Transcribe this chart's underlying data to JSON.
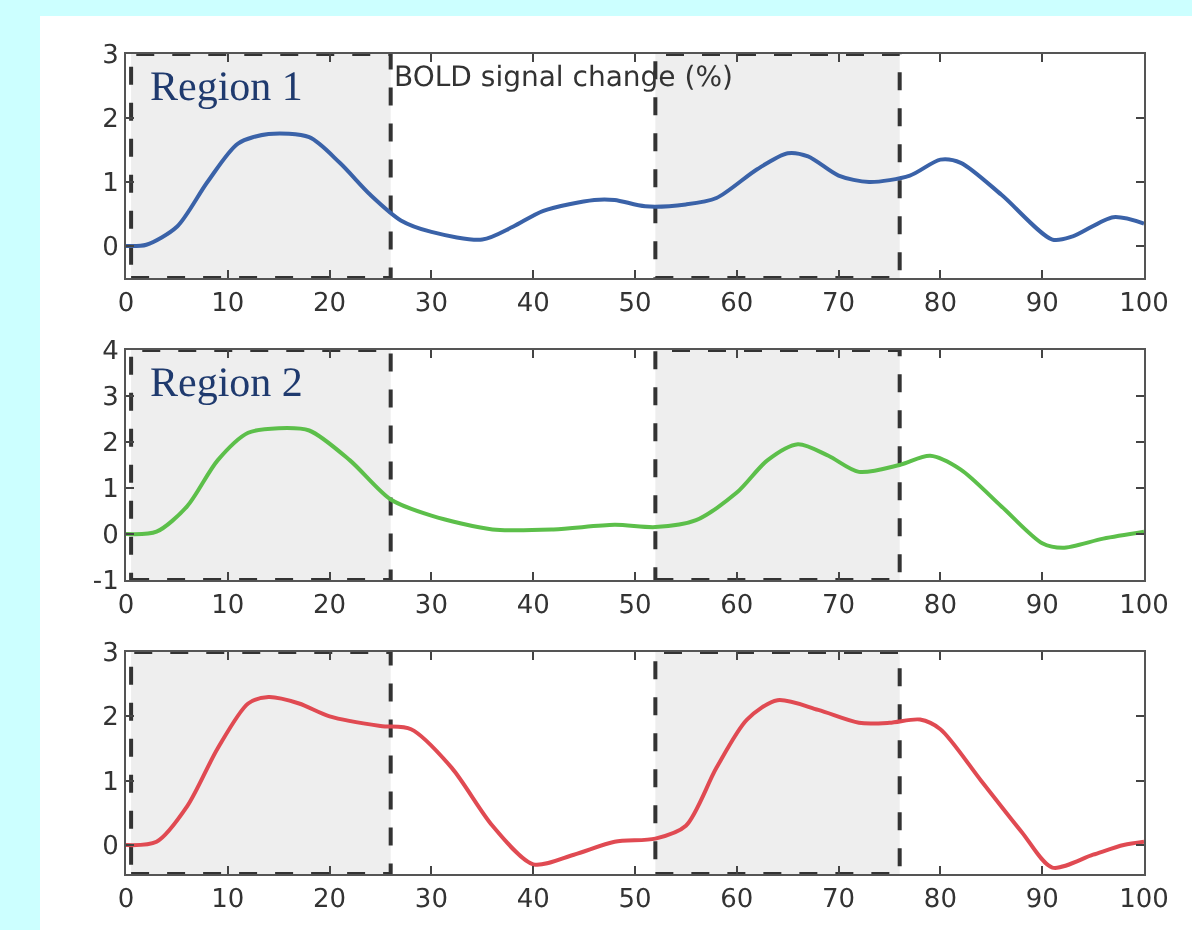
{
  "chart_data": [
    {
      "type": "line",
      "annotations": [
        "Region 1",
        "BOLD signal change (%)"
      ],
      "x": [
        0,
        2,
        5,
        8,
        11,
        14,
        18,
        21,
        24,
        27,
        30,
        35,
        38,
        41,
        46,
        48,
        51,
        55,
        58,
        62,
        65,
        67,
        70,
        73,
        77,
        80,
        82,
        86,
        91,
        93,
        97,
        100
      ],
      "series": [
        {
          "color": "#3a62a8",
          "values": [
            0,
            0.02,
            0.3,
            1.0,
            1.6,
            1.75,
            1.7,
            1.3,
            0.8,
            0.4,
            0.22,
            0.1,
            0.3,
            0.55,
            0.72,
            0.72,
            0.62,
            0.65,
            0.75,
            1.2,
            1.45,
            1.4,
            1.1,
            1.0,
            1.1,
            1.35,
            1.3,
            0.8,
            0.1,
            0.15,
            0.45,
            0.35
          ]
        }
      ],
      "xlim": [
        0,
        100
      ],
      "xticks": [
        0,
        10,
        20,
        30,
        40,
        50,
        60,
        70,
        80,
        90,
        100
      ],
      "ylim": [
        -0.5,
        3
      ],
      "yticks": [
        0,
        1,
        2,
        3
      ],
      "grid": false,
      "marker": "none",
      "line_style": "solid",
      "bands": [
        {
          "axis": "x",
          "from": 0.5,
          "to": 26,
          "color": "#eeeeee"
        },
        {
          "axis": "x",
          "from": 52,
          "to": 76,
          "color": "#eeeeee"
        }
      ]
    },
    {
      "type": "line",
      "annotations": [
        "Region 2"
      ],
      "x": [
        0,
        3,
        6,
        9,
        12,
        15,
        18,
        22,
        26,
        30,
        36,
        42,
        48,
        52,
        56,
        60,
        63,
        66,
        69,
        72,
        76,
        79,
        82,
        86,
        90,
        92,
        96,
        100
      ],
      "series": [
        {
          "color": "#5cbf4a",
          "values": [
            0,
            0.05,
            0.6,
            1.6,
            2.2,
            2.3,
            2.25,
            1.6,
            0.75,
            0.4,
            0.1,
            0.1,
            0.2,
            0.15,
            0.3,
            0.9,
            1.6,
            1.95,
            1.7,
            1.35,
            1.5,
            1.7,
            1.4,
            0.6,
            -0.2,
            -0.3,
            -0.1,
            0.05
          ]
        }
      ],
      "xlim": [
        0,
        100
      ],
      "xticks": [
        0,
        10,
        20,
        30,
        40,
        50,
        60,
        70,
        80,
        90,
        100
      ],
      "ylim": [
        -1,
        4
      ],
      "yticks": [
        -1,
        0,
        1,
        2,
        3,
        4
      ],
      "grid": false,
      "marker": "none",
      "line_style": "solid",
      "bands": [
        {
          "axis": "x",
          "from": 0.5,
          "to": 26,
          "color": "#eeeeee"
        },
        {
          "axis": "x",
          "from": 52,
          "to": 76,
          "color": "#eeeeee"
        }
      ]
    },
    {
      "type": "line",
      "x": [
        0,
        3,
        6,
        9,
        12,
        14,
        17,
        20,
        25,
        28,
        32,
        36,
        40,
        44,
        48,
        52,
        55,
        58,
        61,
        64,
        68,
        72,
        75,
        78,
        80,
        84,
        88,
        91,
        95,
        98,
        100
      ],
      "series": [
        {
          "color": "#e04a52",
          "values": [
            0,
            0.05,
            0.6,
            1.5,
            2.2,
            2.3,
            2.2,
            2.0,
            1.85,
            1.8,
            1.2,
            0.3,
            -0.3,
            -0.15,
            0.05,
            0.1,
            0.3,
            1.2,
            1.95,
            2.25,
            2.1,
            1.9,
            1.9,
            1.95,
            1.8,
            1.0,
            0.2,
            -0.35,
            -0.15,
            0.0,
            0.05
          ]
        }
      ],
      "xlim": [
        0,
        100
      ],
      "xticks": [
        0,
        10,
        20,
        30,
        40,
        50,
        60,
        70,
        80,
        90,
        100
      ],
      "ylim": [
        -0.45,
        3
      ],
      "yticks": [
        0,
        1,
        2,
        3
      ],
      "grid": false,
      "marker": "none",
      "line_style": "solid",
      "bands": [
        {
          "axis": "x",
          "from": 0.5,
          "to": 26,
          "color": "#eeeeee"
        },
        {
          "axis": "x",
          "from": 52,
          "to": 76,
          "color": "#eeeeee"
        }
      ]
    }
  ]
}
